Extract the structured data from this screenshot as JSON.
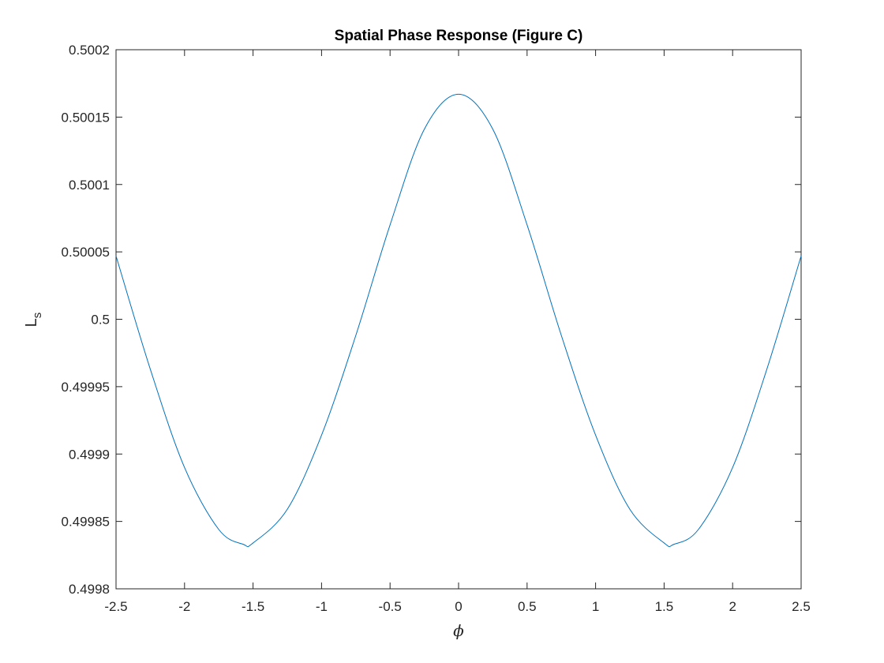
{
  "chart_data": {
    "type": "line",
    "title": "Spatial Phase Response (Figure C)",
    "xlabel": "ϕ",
    "ylabel": "L",
    "ylabel_subscript": "s",
    "xlim": [
      -2.5,
      2.5
    ],
    "ylim": [
      0.4998,
      0.5002
    ],
    "x_ticks": [
      -2.5,
      -2,
      -1.5,
      -1,
      -0.5,
      0,
      0.5,
      1,
      1.5,
      2,
      2.5
    ],
    "x_tick_labels": [
      "-2.5",
      "-2",
      "-1.5",
      "-1",
      "-0.5",
      "0",
      "0.5",
      "1",
      "1.5",
      "2",
      "2.5"
    ],
    "y_ticks": [
      0.4998,
      0.49985,
      0.4999,
      0.49995,
      0.5,
      0.50005,
      0.5001,
      0.50015,
      0.5002
    ],
    "y_tick_labels": [
      "0.4998",
      "0.49985",
      "0.4999",
      "0.49995",
      "0.5",
      "0.50005",
      "0.5001",
      "0.50015",
      "0.5002"
    ],
    "grid": false,
    "series": [
      {
        "color": "#0072BD",
        "x": [
          -2.5,
          -2.25,
          -2.0,
          -1.75,
          -1.5708,
          -1.5,
          -1.25,
          -1.0,
          -0.75,
          -0.5,
          -0.25,
          0.0,
          0.25,
          0.5,
          0.75,
          1.0,
          1.25,
          1.5,
          1.5708,
          1.75,
          2.0,
          2.25,
          2.5
        ],
        "y": [
          0.500047,
          0.499963,
          0.49989,
          0.499844,
          0.499833,
          0.499834,
          0.499859,
          0.499914,
          0.499988,
          0.50007,
          0.500141,
          0.500167,
          0.500141,
          0.50007,
          0.499988,
          0.499914,
          0.499859,
          0.499834,
          0.499833,
          0.499844,
          0.49989,
          0.499963,
          0.500047
        ]
      }
    ]
  }
}
